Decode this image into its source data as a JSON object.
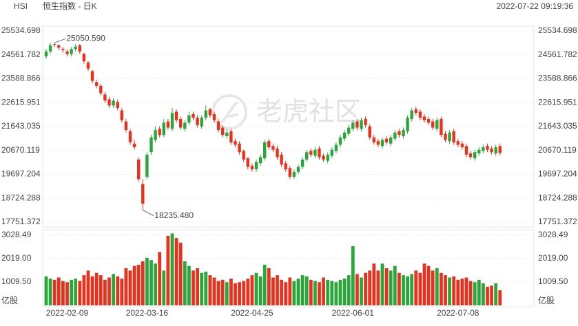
{
  "header": {
    "symbol": "HSI",
    "name": "恒生指数 - 日K",
    "time": "2022-07-22 09:19:36"
  },
  "watermark": "老虎社区",
  "chart_data": {
    "type": "candlestick",
    "categories": [
      null,
      null,
      null,
      null,
      null,
      "2022-02-09",
      null,
      null,
      null,
      null,
      null,
      null,
      null,
      null,
      null,
      null,
      null,
      null,
      null,
      null,
      null,
      null,
      null,
      null,
      "2022-03-16",
      null,
      null,
      null,
      null,
      null,
      null,
      null,
      null,
      null,
      null,
      null,
      null,
      null,
      null,
      null,
      null,
      null,
      null,
      null,
      null,
      null,
      null,
      null,
      null,
      "2022-04-25",
      null,
      null,
      null,
      null,
      null,
      null,
      null,
      null,
      null,
      null,
      null,
      null,
      null,
      null,
      null,
      null,
      null,
      null,
      null,
      null,
      null,
      null,
      null,
      "2022-06-01",
      null,
      null,
      null,
      null,
      null,
      null,
      null,
      null,
      null,
      null,
      null,
      null,
      null,
      null,
      null,
      null,
      null,
      null,
      null,
      null,
      null,
      null,
      null,
      null,
      "2022-07-08",
      null,
      null,
      null,
      null,
      null,
      null,
      null,
      null,
      null,
      null
    ],
    "open": [
      24500,
      24700,
      25000,
      24950,
      24800,
      24700,
      24600,
      24800,
      24950,
      24600,
      24250,
      23900,
      23450,
      23300,
      22950,
      22750,
      22500,
      22650,
      22300,
      21850,
      21450,
      20950,
      20300,
      19300,
      19600,
      20600,
      21100,
      21550,
      21300,
      21850,
      21550,
      22250,
      21950,
      21550,
      21800,
      22150,
      22000,
      21650,
      22000,
      22350,
      22150,
      21850,
      21600,
      21250,
      21450,
      21050,
      20950,
      20650,
      20350,
      20050,
      19900,
      20150,
      20350,
      21050,
      20850,
      20750,
      20500,
      20150,
      19950,
      19600,
      19800,
      20000,
      20300,
      20650,
      20450,
      20750,
      20450,
      20250,
      20450,
      20650,
      20900,
      21150,
      21350,
      21550,
      21850,
      21550,
      21950,
      21650,
      21200,
      21050,
      20850,
      21150,
      20950,
      21150,
      21450,
      21250,
      21450,
      21950,
      22350,
      22250,
      22050,
      21950,
      21850,
      21550,
      21950,
      21350,
      21050,
      21450,
      21050,
      20950,
      20850,
      20550,
      20350,
      20550,
      20650,
      20850,
      20750,
      20550,
      20850
    ],
    "high": [
      24800,
      25050,
      25050.59,
      25000,
      24880,
      24780,
      24880,
      25000,
      25000,
      24650,
      24300,
      23950,
      23550,
      23380,
      23050,
      22850,
      22800,
      22750,
      22400,
      21950,
      21550,
      21100,
      20400,
      19500,
      20600,
      21300,
      21650,
      21650,
      21950,
      21950,
      22400,
      22350,
      22050,
      21900,
      22250,
      22250,
      22100,
      22100,
      22500,
      22400,
      22250,
      21950,
      21700,
      21550,
      21550,
      21150,
      21050,
      20700,
      20400,
      20150,
      20300,
      20500,
      21100,
      21150,
      20950,
      20850,
      20600,
      20250,
      20050,
      19900,
      20100,
      20400,
      20700,
      20750,
      20800,
      20850,
      20550,
      20600,
      20800,
      21000,
      21300,
      21500,
      21700,
      21900,
      21950,
      22000,
      22050,
      21750,
      21300,
      21150,
      21200,
      21250,
      21300,
      21500,
      21550,
      21600,
      22100,
      22400,
      22450,
      22350,
      22150,
      22050,
      21950,
      22000,
      22050,
      21450,
      21500,
      21550,
      21150,
      21050,
      20950,
      20650,
      20700,
      20800,
      20900,
      20950,
      20850,
      20900,
      20950
    ],
    "low": [
      24400,
      24600,
      24880,
      24750,
      24650,
      24500,
      24500,
      24700,
      24600,
      24200,
      23900,
      23400,
      23200,
      22900,
      22600,
      22400,
      22400,
      22300,
      21800,
      21400,
      20900,
      20700,
      19400,
      18235.48,
      19500,
      20500,
      21000,
      21200,
      21200,
      21500,
      21450,
      21800,
      21500,
      21450,
      21700,
      21900,
      21600,
      21550,
      21900,
      22000,
      21800,
      21400,
      21200,
      21150,
      20900,
      20800,
      20500,
      20200,
      19900,
      19800,
      19800,
      20050,
      20250,
      20700,
      20600,
      20300,
      20000,
      19800,
      19500,
      19500,
      19700,
      19900,
      20200,
      20400,
      20350,
      20300,
      20200,
      20150,
      20350,
      20550,
      20800,
      21050,
      21250,
      21450,
      21500,
      21450,
      21600,
      21100,
      20900,
      20800,
      20750,
      20900,
      20850,
      21050,
      21200,
      21150,
      21350,
      21850,
      22100,
      21900,
      21800,
      21700,
      21500,
      21450,
      21200,
      21000,
      20950,
      20900,
      20800,
      20700,
      20400,
      20300,
      20250,
      20450,
      20550,
      20600,
      20500,
      20450,
      20470
    ],
    "close": [
      24700,
      24950,
      24980,
      24850,
      24750,
      24600,
      24800,
      24900,
      24700,
      24300,
      24000,
      23500,
      23300,
      23000,
      22700,
      22500,
      22700,
      22400,
      21900,
      21500,
      21000,
      20800,
      19500,
      18500,
      20500,
      21200,
      21500,
      21300,
      21800,
      21600,
      22200,
      21900,
      21600,
      21800,
      22100,
      22000,
      21700,
      22000,
      22300,
      22100,
      21900,
      21500,
      21300,
      21400,
      21000,
      20900,
      20600,
      20300,
      20000,
      19900,
      20200,
      20400,
      21000,
      20800,
      20700,
      20400,
      20100,
      19900,
      19600,
      19800,
      20000,
      20300,
      20600,
      20500,
      20700,
      20400,
      20300,
      20500,
      20700,
      20900,
      21200,
      21400,
      21600,
      21800,
      21600,
      21900,
      21700,
      21200,
      21000,
      20900,
      21100,
      21000,
      21200,
      21400,
      21300,
      21500,
      22000,
      22300,
      22200,
      22000,
      21900,
      21800,
      21600,
      21900,
      21300,
      21100,
      21400,
      21000,
      20900,
      20800,
      20500,
      20400,
      20600,
      20700,
      20800,
      20700,
      20600,
      20800,
      20570
    ],
    "volume": [
      1250,
      1150,
      1100,
      1200,
      1050,
      1000,
      1100,
      1150,
      1050,
      1300,
      1500,
      1250,
      1400,
      1300,
      1100,
      1200,
      1350,
      1250,
      1150,
      1600,
      1500,
      1700,
      1750,
      1900,
      2050,
      1950,
      1800,
      2300,
      1500,
      3000,
      3100,
      2900,
      2700,
      1900,
      1700,
      1500,
      1600,
      1400,
      1450,
      1300,
      1200,
      1050,
      1100,
      1000,
      1150,
      950,
      1000,
      1050,
      1150,
      1300,
      1400,
      1250,
      1750,
      1600,
      1200,
      1300,
      1100,
      1000,
      1200,
      1050,
      1150,
      1300,
      1250,
      1100,
      1050,
      1000,
      1200,
      1100,
      1050,
      1000,
      1100,
      1150,
      1300,
      2550,
      1350,
      1200,
      1400,
      1500,
      1800,
      1500,
      1800,
      1600,
      1500,
      1700,
      1400,
      1300,
      1250,
      1350,
      1500,
      1400,
      1800,
      1700,
      1500,
      1600,
      1400,
      1300,
      1200,
      1250,
      1100,
      1150,
      1200,
      1050,
      1000,
      1100,
      950,
      800,
      850,
      950,
      650
    ],
    "up_color": "#2aa63a",
    "down_color": "#e8321e",
    "ylim": [
      17751.372,
      25534.698
    ],
    "yticks": [
      17751.372,
      18724.288,
      19697.204,
      20670.119,
      21643.035,
      22615.951,
      23588.866,
      24561.782,
      25534.698
    ],
    "vol_ylim": [
      0,
      3230
    ],
    "vol_yticks": [
      {
        "value": 1009.5,
        "label": "1009.50"
      },
      {
        "value": 2019,
        "label": "2019.00"
      },
      3028.49
    ],
    "vol_unit": "亿股",
    "grid": true,
    "annotations": [
      {
        "index": 2,
        "value": 25050.59,
        "label": "25050.590"
      },
      {
        "index": 23,
        "value": 18235.48,
        "label": "18235.480"
      }
    ]
  }
}
